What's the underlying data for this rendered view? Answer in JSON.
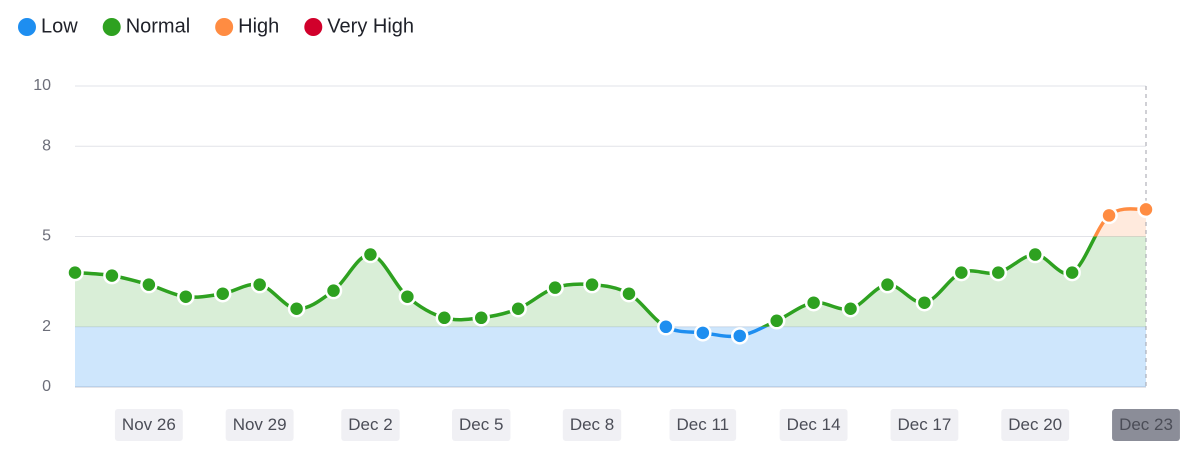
{
  "chart_data": {
    "type": "line",
    "categories": [
      null,
      null,
      "Nov 26",
      null,
      null,
      "Nov 29",
      null,
      null,
      "Dec 2",
      null,
      null,
      "Dec 5",
      null,
      null,
      "Dec 8",
      null,
      null,
      "Dec 11",
      null,
      null,
      "Dec 14",
      null,
      null,
      "Dec 17",
      null,
      null,
      "Dec 20",
      null,
      null,
      "Dec 23"
    ],
    "values": [
      3.8,
      3.7,
      3.4,
      3.0,
      3.1,
      3.4,
      2.6,
      3.2,
      4.4,
      3.0,
      2.3,
      2.3,
      2.6,
      3.3,
      3.4,
      3.1,
      2.0,
      1.8,
      1.7,
      2.2,
      2.8,
      2.6,
      3.4,
      2.8,
      3.8,
      3.8,
      4.4,
      3.8,
      5.7,
      5.9
    ],
    "ylim": [
      0,
      10
    ],
    "yticks": [
      0,
      2,
      5,
      8,
      10
    ],
    "grid": true,
    "bands": [
      {
        "name": "Low",
        "color": "#1e8ef0",
        "range": [
          0,
          2
        ]
      },
      {
        "name": "Normal",
        "color": "#2ea120",
        "range": [
          2,
          5
        ]
      },
      {
        "name": "High",
        "color": "#ff8c42",
        "range": [
          5,
          8
        ]
      },
      {
        "name": "Very High",
        "color": "#d1002b",
        "range": [
          8,
          10
        ]
      }
    ]
  }
}
